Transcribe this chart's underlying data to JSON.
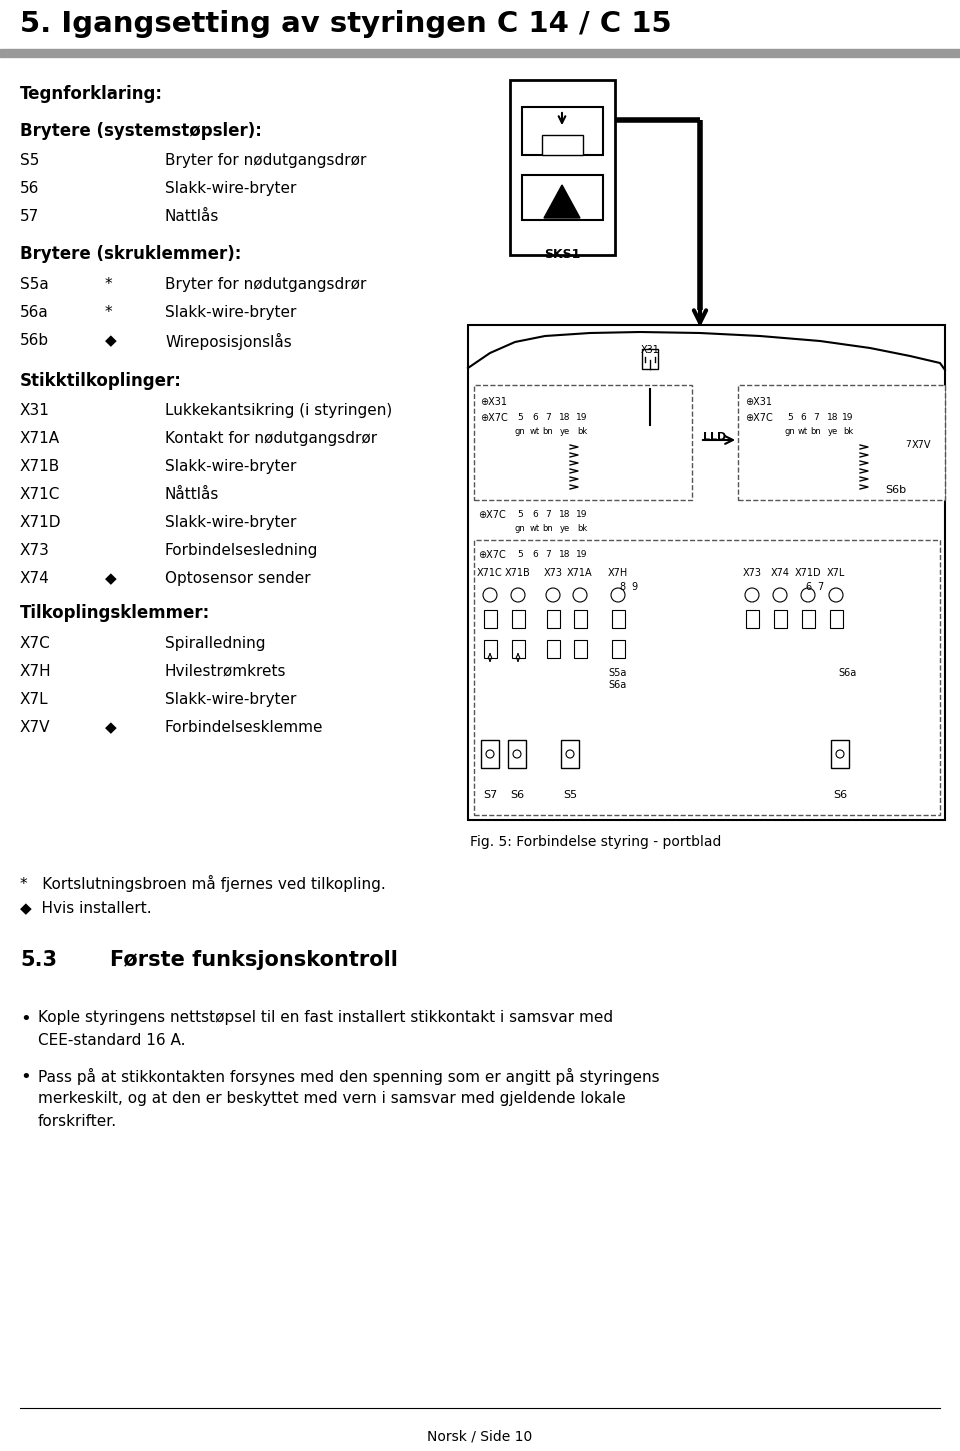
{
  "title": "5. Igangsetting av styringen C 14 / C 15",
  "bg_color": "#ffffff",
  "text_color": "#000000",
  "page_width": 9.6,
  "page_height": 14.51,
  "tegnforklaring_label": "Tegnforklaring:",
  "brytere_sys_label": "Brytere (systemstøpsler):",
  "brytere_sys_items": [
    [
      "S5",
      "",
      "Bryter for nødutgangsdrør"
    ],
    [
      "56",
      "",
      "Slakk-wire-bryter"
    ],
    [
      "57",
      "",
      "Nattlås"
    ]
  ],
  "brytere_skr_label": "Brytere (skruklemmer):",
  "brytere_skr_items": [
    [
      "S5a",
      "*",
      "Bryter for nødutgangsdrør"
    ],
    [
      "56a",
      "*",
      "Slakk-wire-bryter"
    ],
    [
      "56b",
      "◆",
      "Wireposisjonslås"
    ]
  ],
  "stikk_label": "Stikktilkoplinger:",
  "stikk_items": [
    [
      "X31",
      "",
      "Lukkekantsikring (i styringen)"
    ],
    [
      "X71A",
      "",
      "Kontakt for nødutgangsdrør"
    ],
    [
      "X71B",
      "",
      "Slakk-wire-bryter"
    ],
    [
      "X71C",
      "",
      "Nåttlås"
    ],
    [
      "X71D",
      "",
      "Slakk-wire-bryter"
    ],
    [
      "X73",
      "",
      "Forbindelsesledning"
    ],
    [
      "X74",
      "◆",
      "Optosensor sender"
    ]
  ],
  "tilkopl_label": "Tilkoplingsklemmer:",
  "tilkopl_items": [
    [
      "X7C",
      "",
      "Spiralledning"
    ],
    [
      "X7H",
      "",
      "Hvilestrømkrets"
    ],
    [
      "X7L",
      "",
      "Slakk-wire-bryter"
    ],
    [
      "X7V",
      "◆",
      "Forbindelsesklemme"
    ]
  ],
  "fig_caption": "Fig. 5: Forbindelse styring - portblad",
  "footnote1": "*   Kortslutningsbroen må fjernes ved tilkopling.",
  "footnote2": "◆  Hvis installert.",
  "section53_num": "5.3",
  "section53_title": "Første funksjonskontroll",
  "bullet1_line1": "Kople styringens nettstøpsel til en fast installert stikkontakt i samsvar med",
  "bullet1_line2": "CEE-standard 16 A.",
  "bullet2_line1": "Pass på at stikkontakten forsynes med den spenning som er angitt på styringens",
  "bullet2_line2": "merkeskilt, og at den er beskyttet med vern i samsvar med gjeldende lokale",
  "bullet2_line3": "forskrifter.",
  "footer_line": "Norsk / Side 10",
  "gray_bar_color": "#999999"
}
